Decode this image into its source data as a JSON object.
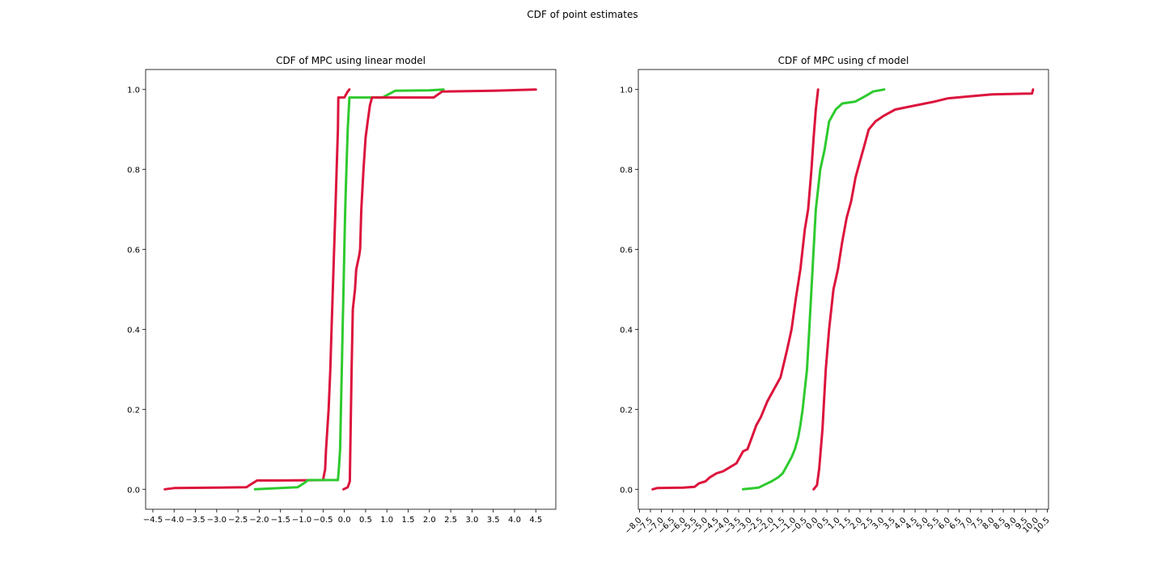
{
  "figure": {
    "suptitle": "CDF of point estimates"
  },
  "colors": {
    "red": "#dc143c",
    "green": "#2eca2e",
    "axis": "#000000",
    "background": "#ffffff"
  },
  "chart_data": [
    {
      "type": "line",
      "title": "CDF of MPC using linear model",
      "xlabel": "",
      "ylabel": "",
      "xlim": [
        -4.67,
        4.97
      ],
      "ylim": [
        -0.05,
        1.05
      ],
      "xticks": [
        -4.5,
        -4.0,
        -3.5,
        -3.0,
        -2.5,
        -2.0,
        -1.5,
        -1.0,
        -0.5,
        0.0,
        0.5,
        1.0,
        1.5,
        2.0,
        2.5,
        3.0,
        3.5,
        4.0,
        4.5
      ],
      "xtick_labels": [
        "−4.5",
        "−4.0",
        "−3.5",
        "−3.0",
        "−2.5",
        "−2.0",
        "−1.5",
        "−1.0",
        "−0.5",
        "0.0",
        "0.5",
        "1.0",
        "1.5",
        "2.0",
        "2.5",
        "3.0",
        "3.5",
        "4.0",
        "4.5"
      ],
      "yticks": [
        0.0,
        0.2,
        0.4,
        0.6,
        0.8,
        1.0
      ],
      "ytick_labels": [
        "0.0",
        "0.2",
        "0.4",
        "0.6",
        "0.8",
        "1.0"
      ],
      "grid": false,
      "series": [
        {
          "color": "red",
          "points": [
            [
              -4.22,
              0
            ],
            [
              -4.0,
              0.003
            ],
            [
              -3.0,
              0.004
            ],
            [
              -2.3,
              0.005
            ],
            [
              -2.2,
              0.012
            ],
            [
              -2.05,
              0.022
            ],
            [
              -1.5,
              0.022
            ],
            [
              -0.5,
              0.023
            ],
            [
              -0.45,
              0.05
            ],
            [
              -0.43,
              0.1
            ],
            [
              -0.4,
              0.15
            ],
            [
              -0.37,
              0.2
            ],
            [
              -0.33,
              0.3
            ],
            [
              -0.3,
              0.4
            ],
            [
              -0.27,
              0.5
            ],
            [
              -0.24,
              0.6
            ],
            [
              -0.21,
              0.7
            ],
            [
              -0.18,
              0.8
            ],
            [
              -0.15,
              0.9
            ],
            [
              -0.14,
              0.98
            ],
            [
              0.0,
              0.98
            ],
            [
              0.08,
              0.995
            ],
            [
              0.12,
              1.0
            ]
          ]
        },
        {
          "color": "green",
          "points": [
            [
              -2.1,
              0
            ],
            [
              -1.5,
              0.003
            ],
            [
              -1.1,
              0.005
            ],
            [
              -0.95,
              0.015
            ],
            [
              -0.85,
              0.023
            ],
            [
              -0.15,
              0.023
            ],
            [
              -0.13,
              0.05
            ],
            [
              -0.1,
              0.1
            ],
            [
              -0.08,
              0.2
            ],
            [
              -0.06,
              0.3
            ],
            [
              -0.04,
              0.4
            ],
            [
              -0.02,
              0.5
            ],
            [
              0.0,
              0.6
            ],
            [
              0.02,
              0.7
            ],
            [
              0.05,
              0.8
            ],
            [
              0.08,
              0.9
            ],
            [
              0.12,
              0.98
            ],
            [
              0.9,
              0.98
            ],
            [
              1.2,
              0.997
            ],
            [
              2.0,
              0.998
            ],
            [
              2.33,
              1.0
            ]
          ]
        },
        {
          "color": "red",
          "points": [
            [
              -0.02,
              0
            ],
            [
              0.08,
              0.005
            ],
            [
              0.13,
              0.02
            ],
            [
              0.14,
              0.1
            ],
            [
              0.17,
              0.3
            ],
            [
              0.2,
              0.45
            ],
            [
              0.25,
              0.5
            ],
            [
              0.28,
              0.55
            ],
            [
              0.35,
              0.585
            ],
            [
              0.37,
              0.6
            ],
            [
              0.4,
              0.7
            ],
            [
              0.45,
              0.8
            ],
            [
              0.5,
              0.88
            ],
            [
              0.55,
              0.92
            ],
            [
              0.6,
              0.96
            ],
            [
              0.65,
              0.98
            ],
            [
              2.1,
              0.98
            ],
            [
              2.3,
              0.995
            ],
            [
              3.5,
              0.997
            ],
            [
              4.5,
              1.0
            ]
          ]
        }
      ]
    },
    {
      "type": "line",
      "title": "CDF of MPC using cf model",
      "xlabel": "",
      "ylabel": "",
      "xlim": [
        -8.05,
        10.55
      ],
      "ylim": [
        -0.05,
        1.05
      ],
      "xticks": [
        -8.0,
        -7.5,
        -7.0,
        -6.5,
        -6.0,
        -5.5,
        -5.0,
        -4.5,
        -4.0,
        -3.5,
        -3.0,
        -2.5,
        -2.0,
        -1.5,
        -1.0,
        -0.5,
        0.0,
        0.5,
        1.0,
        1.5,
        2.0,
        2.5,
        3.0,
        3.5,
        4.0,
        4.5,
        5.0,
        5.5,
        6.0,
        6.5,
        7.0,
        7.5,
        8.0,
        8.5,
        9.0,
        9.5,
        10.0,
        10.5
      ],
      "xtick_labels": [
        "−8.0",
        "−7.5",
        "−7.0",
        "−6.5",
        "−6.0",
        "−5.5",
        "−5.0",
        "−4.5",
        "−4.0",
        "−3.5",
        "−3.0",
        "−2.5",
        "−2.0",
        "−1.5",
        "−1.0",
        "−0.5",
        "0.0",
        "0.5",
        "1.0",
        "1.5",
        "2.0",
        "2.5",
        "3.0",
        "3.5",
        "4.0",
        "4.5",
        "5.0",
        "5.5",
        "6.0",
        "6.5",
        "7.0",
        "7.5",
        "8.0",
        "8.5",
        "9.0",
        "9.5",
        "10.0",
        "10.5"
      ],
      "yticks": [
        0.0,
        0.2,
        0.4,
        0.6,
        0.8,
        1.0
      ],
      "ytick_labels": [
        "0.0",
        "0.2",
        "0.4",
        "0.6",
        "0.8",
        "1.0"
      ],
      "grid": false,
      "series": [
        {
          "color": "red",
          "points": [
            [
              -7.4,
              0
            ],
            [
              -7.2,
              0.003
            ],
            [
              -6.0,
              0.004
            ],
            [
              -5.5,
              0.006
            ],
            [
              -5.3,
              0.015
            ],
            [
              -5.0,
              0.02
            ],
            [
              -4.8,
              0.03
            ],
            [
              -4.5,
              0.04
            ],
            [
              -4.2,
              0.045
            ],
            [
              -3.9,
              0.055
            ],
            [
              -3.6,
              0.065
            ],
            [
              -3.3,
              0.095
            ],
            [
              -3.1,
              0.1
            ],
            [
              -2.9,
              0.13
            ],
            [
              -2.7,
              0.16
            ],
            [
              -2.5,
              0.18
            ],
            [
              -2.2,
              0.22
            ],
            [
              -1.9,
              0.25
            ],
            [
              -1.6,
              0.28
            ],
            [
              -1.3,
              0.35
            ],
            [
              -1.1,
              0.4
            ],
            [
              -0.9,
              0.48
            ],
            [
              -0.7,
              0.55
            ],
            [
              -0.5,
              0.65
            ],
            [
              -0.35,
              0.7
            ],
            [
              -0.2,
              0.8
            ],
            [
              -0.1,
              0.88
            ],
            [
              0.0,
              0.95
            ],
            [
              0.1,
              1.0
            ]
          ]
        },
        {
          "color": "green",
          "points": [
            [
              -3.3,
              0
            ],
            [
              -2.6,
              0.004
            ],
            [
              -2.3,
              0.012
            ],
            [
              -2.0,
              0.02
            ],
            [
              -1.7,
              0.03
            ],
            [
              -1.5,
              0.04
            ],
            [
              -1.3,
              0.06
            ],
            [
              -1.1,
              0.08
            ],
            [
              -0.95,
              0.1
            ],
            [
              -0.8,
              0.13
            ],
            [
              -0.7,
              0.16
            ],
            [
              -0.6,
              0.2
            ],
            [
              -0.5,
              0.25
            ],
            [
              -0.4,
              0.3
            ],
            [
              -0.3,
              0.4
            ],
            [
              -0.2,
              0.5
            ],
            [
              -0.1,
              0.6
            ],
            [
              0.0,
              0.7
            ],
            [
              0.2,
              0.8
            ],
            [
              0.4,
              0.85
            ],
            [
              0.6,
              0.92
            ],
            [
              0.9,
              0.95
            ],
            [
              1.2,
              0.965
            ],
            [
              1.8,
              0.97
            ],
            [
              2.3,
              0.985
            ],
            [
              2.6,
              0.995
            ],
            [
              3.1,
              1.0
            ]
          ]
        },
        {
          "color": "red",
          "points": [
            [
              -0.1,
              0
            ],
            [
              0.05,
              0.01
            ],
            [
              0.15,
              0.05
            ],
            [
              0.3,
              0.15
            ],
            [
              0.45,
              0.3
            ],
            [
              0.6,
              0.4
            ],
            [
              0.8,
              0.5
            ],
            [
              1.0,
              0.55
            ],
            [
              1.2,
              0.62
            ],
            [
              1.4,
              0.68
            ],
            [
              1.6,
              0.72
            ],
            [
              1.8,
              0.78
            ],
            [
              2.0,
              0.82
            ],
            [
              2.2,
              0.86
            ],
            [
              2.4,
              0.9
            ],
            [
              2.7,
              0.92
            ],
            [
              3.1,
              0.935
            ],
            [
              3.6,
              0.95
            ],
            [
              4.5,
              0.96
            ],
            [
              5.4,
              0.97
            ],
            [
              6.0,
              0.978
            ],
            [
              7.0,
              0.983
            ],
            [
              8.0,
              0.988
            ],
            [
              9.8,
              0.99
            ],
            [
              9.85,
              1.0
            ]
          ]
        }
      ]
    }
  ]
}
